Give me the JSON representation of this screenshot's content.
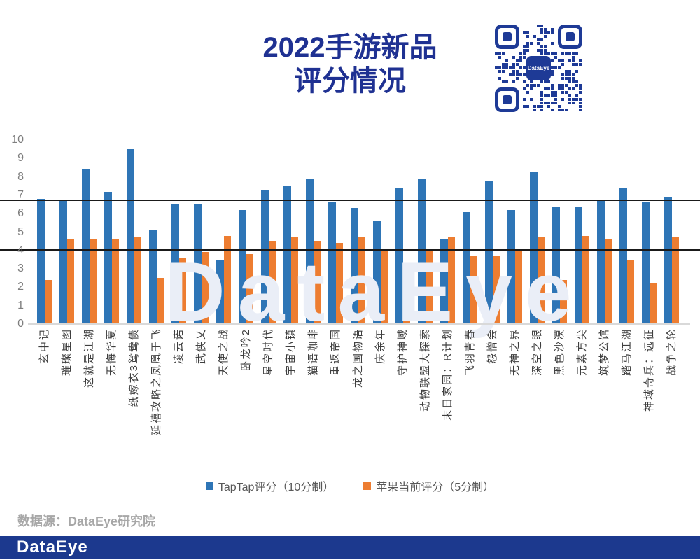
{
  "title": {
    "line1": "2022手游新品",
    "line2": "评分情况",
    "color": "#1f3192"
  },
  "qr_code": {
    "logo_text": "DataEye",
    "color": "#1e3a96"
  },
  "watermark": "DataEye",
  "chart_data": {
    "type": "bar",
    "title": "2022手游新品评分情况",
    "categories": [
      "玄中记",
      "璀璨星图",
      "这就是江湖",
      "无悔华夏",
      "纸嫁衣3鸳鸯债",
      "延禧攻略之凤凰于飞",
      "凌云诺",
      "武侠乂",
      "天使之战",
      "卧龙吟2",
      "星空时代",
      "宇宙小镇",
      "猫语咖啡",
      "重返帝国",
      "龙之国物语",
      "庆余年",
      "守护神域",
      "动物联盟大探索",
      "末日家园：R计划",
      "飞羽青春",
      "怨憎会",
      "无神之界",
      "深空之眼",
      "黑色沙漠",
      "元素方尖",
      "筑梦公馆",
      "踏马江湖",
      "神域奇兵：远征",
      "战争之轮"
    ],
    "series": [
      {
        "name": "TapTap评分（10分制）",
        "color": "#2E75B6",
        "values": [
          6.8,
          6.7,
          8.4,
          7.2,
          9.5,
          5.1,
          6.5,
          6.5,
          3.5,
          6.2,
          7.3,
          7.5,
          7.9,
          6.6,
          6.3,
          5.6,
          7.4,
          7.9,
          4.6,
          6.1,
          7.8,
          6.2,
          8.3,
          6.4,
          6.4,
          6.7,
          7.4,
          6.6,
          6.9
        ]
      },
      {
        "name": "苹果当前评分（5分制）",
        "color": "#ED7D31",
        "values": [
          2.4,
          4.6,
          4.6,
          4.6,
          4.7,
          2.5,
          3.6,
          3.9,
          4.8,
          3.8,
          4.5,
          4.7,
          4.5,
          4.4,
          4.7,
          4.0,
          2.8,
          4.0,
          4.7,
          3.7,
          3.7,
          4.0,
          4.7,
          2.4,
          4.8,
          4.6,
          3.5,
          2.2,
          4.7
        ]
      }
    ],
    "ylim": [
      0,
      10
    ],
    "yticks": [
      0,
      1,
      2,
      3,
      4,
      5,
      6,
      7,
      8,
      9,
      10
    ],
    "reference_lines": [
      {
        "value": 6.75,
        "color": "#1a1a1a"
      },
      {
        "value": 4.05,
        "color": "#1a1a1a"
      }
    ],
    "grid": false,
    "legend_position": "bottom",
    "x_label_rotation": 90
  },
  "legend": {
    "items": [
      {
        "label": "TapTap评分（10分制）",
        "color": "#2E75B6"
      },
      {
        "label": "苹果当前评分（5分制）",
        "color": "#ED7D31"
      }
    ]
  },
  "footer": {
    "source_note": "数据源：DataEye研究院",
    "logo_text": "DataEye",
    "bar_color": "#1c398e"
  }
}
